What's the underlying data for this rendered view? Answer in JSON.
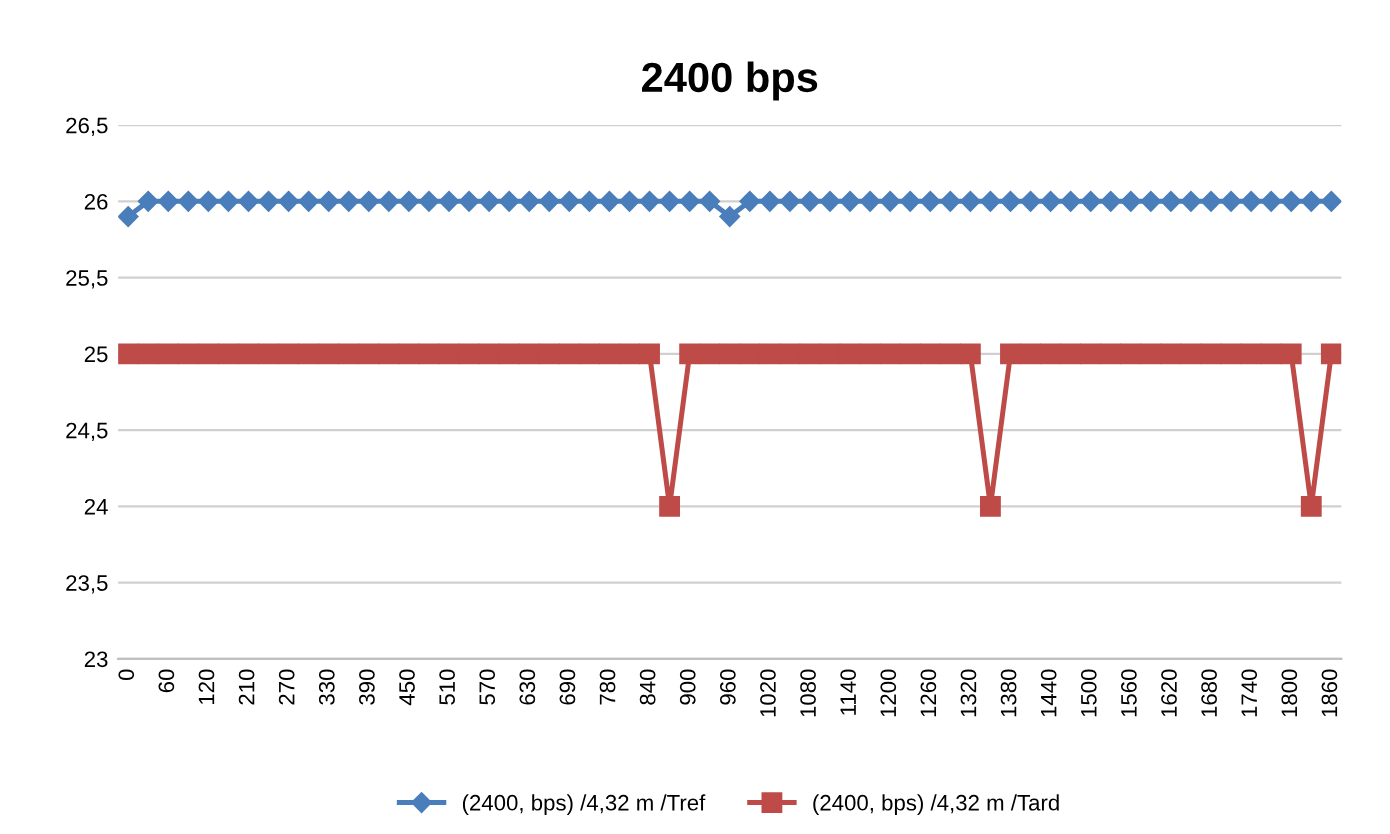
{
  "chart_data": {
    "type": "line",
    "title": "2400 bps",
    "categories": [
      "0",
      null,
      "60",
      null,
      "120",
      null,
      "210",
      null,
      "270",
      null,
      "330",
      null,
      "390",
      null,
      "450",
      null,
      "510",
      null,
      "570",
      null,
      "630",
      null,
      "690",
      null,
      "780",
      null,
      "840",
      null,
      "900",
      null,
      "960",
      null,
      "1020",
      null,
      "1080",
      null,
      "1140",
      null,
      "1200",
      null,
      "1260",
      null,
      "1320",
      null,
      "1380",
      null,
      "1440",
      null,
      "1500",
      null,
      "1560",
      null,
      "1620",
      null,
      "1680",
      null,
      "1740",
      null,
      "1800",
      null,
      "1860"
    ],
    "series": [
      {
        "name": "(2400, bps) /4,32 m /Tref",
        "color": "#4a7ebb",
        "marker": "diamond",
        "values": [
          25.9,
          26,
          26,
          26,
          26,
          26,
          26,
          26,
          26,
          26,
          26,
          26,
          26,
          26,
          26,
          26,
          26,
          26,
          26,
          26,
          26,
          26,
          26,
          26,
          26,
          26,
          26,
          26,
          26,
          26,
          25.9,
          26,
          26,
          26,
          26,
          26,
          26,
          26,
          26,
          26,
          26,
          26,
          26,
          26,
          26,
          26,
          26,
          26,
          26,
          26,
          26,
          26,
          26,
          26,
          26,
          26,
          26,
          26,
          26,
          26,
          26
        ]
      },
      {
        "name": "(2400, bps) /4,32 m /Tard",
        "color": "#be4b48",
        "marker": "square",
        "values": [
          25,
          25,
          25,
          25,
          25,
          25,
          25,
          25,
          25,
          25,
          25,
          25,
          25,
          25,
          25,
          25,
          25,
          25,
          25,
          25,
          25,
          25,
          25,
          25,
          25,
          25,
          25,
          24,
          25,
          25,
          25,
          25,
          25,
          25,
          25,
          25,
          25,
          25,
          25,
          25,
          25,
          25,
          25,
          24,
          25,
          25,
          25,
          25,
          25,
          25,
          25,
          25,
          25,
          25,
          25,
          25,
          25,
          25,
          25,
          24,
          25
        ]
      }
    ],
    "ylim": [
      23,
      26.5
    ],
    "yticks": [
      23,
      {
        "value": 23.5,
        "label": "23,5"
      },
      24,
      {
        "value": 24.5,
        "label": "24,5"
      },
      25,
      {
        "value": 25.5,
        "label": "25,5"
      },
      26,
      {
        "value": 26.5,
        "label": "26,5"
      }
    ],
    "grid": "y",
    "legend": "bottom",
    "line_style": "solid"
  }
}
